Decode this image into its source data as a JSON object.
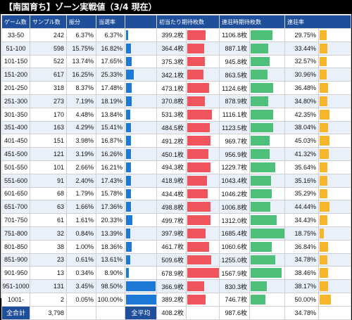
{
  "title": "【南国育ち】ゾーン実戦値（3/4 現在）",
  "headers": [
    "ゲーム数",
    "サンプル数",
    "振分",
    "当選率",
    "",
    "初当たり期待枚数",
    "",
    "連荘時期待枚数",
    "",
    "連荘率",
    ""
  ],
  "colors": {
    "header": "#1f4e9a",
    "blue": "#1e78d6",
    "red": "#f0555e",
    "green": "#4fc07a",
    "orange": "#f7b52c"
  },
  "rows": [
    {
      "zone": "33-50",
      "samples": "242",
      "dist": "6.37%",
      "rate": "6.37%",
      "rate_v": 6.37,
      "first": "399.2枚",
      "first_v": 399.2,
      "ren": "1106.8枚",
      "ren_v": 1106.8,
      "renrate": "29.75%",
      "renrate_v": 29.75
    },
    {
      "zone": "51-100",
      "samples": "598",
      "dist": "15.75%",
      "rate": "16.82%",
      "rate_v": 16.82,
      "first": "364.4枚",
      "first_v": 364.4,
      "ren": "887.1枚",
      "ren_v": 887.1,
      "renrate": "33.44%",
      "renrate_v": 33.44
    },
    {
      "zone": "101-150",
      "samples": "522",
      "dist": "13.74%",
      "rate": "17.65%",
      "rate_v": 17.65,
      "first": "375.3枚",
      "first_v": 375.3,
      "ren": "945.8枚",
      "ren_v": 945.8,
      "renrate": "32.57%",
      "renrate_v": 32.57
    },
    {
      "zone": "151-200",
      "samples": "617",
      "dist": "16.25%",
      "rate": "25.33%",
      "rate_v": 25.33,
      "first": "342.1枚",
      "first_v": 342.1,
      "ren": "863.5枚",
      "ren_v": 863.5,
      "renrate": "30.96%",
      "renrate_v": 30.96
    },
    {
      "zone": "201-250",
      "samples": "318",
      "dist": "8.37%",
      "rate": "17.48%",
      "rate_v": 17.48,
      "first": "473.1枚",
      "first_v": 473.1,
      "ren": "1124.6枚",
      "ren_v": 1124.6,
      "renrate": "36.48%",
      "renrate_v": 36.48
    },
    {
      "zone": "251-300",
      "samples": "273",
      "dist": "7.19%",
      "rate": "18.19%",
      "rate_v": 18.19,
      "first": "370.8枚",
      "first_v": 370.8,
      "ren": "878.9枚",
      "ren_v": 878.9,
      "renrate": "34.80%",
      "renrate_v": 34.8
    },
    {
      "zone": "301-350",
      "samples": "170",
      "dist": "4.48%",
      "rate": "13.84%",
      "rate_v": 13.84,
      "first": "531.3枚",
      "first_v": 531.3,
      "ren": "1116.1枚",
      "ren_v": 1116.1,
      "renrate": "42.35%",
      "renrate_v": 42.35
    },
    {
      "zone": "351-400",
      "samples": "163",
      "dist": "4.29%",
      "rate": "15.41%",
      "rate_v": 15.41,
      "first": "484.5枚",
      "first_v": 484.5,
      "ren": "1123.5枚",
      "ren_v": 1123.5,
      "renrate": "38.04%",
      "renrate_v": 38.04
    },
    {
      "zone": "401-450",
      "samples": "151",
      "dist": "3.98%",
      "rate": "16.87%",
      "rate_v": 16.87,
      "first": "491.2枚",
      "first_v": 491.2,
      "ren": "969.7枚",
      "ren_v": 969.7,
      "renrate": "45.03%",
      "renrate_v": 45.03
    },
    {
      "zone": "451-500",
      "samples": "121",
      "dist": "3.19%",
      "rate": "16.26%",
      "rate_v": 16.26,
      "first": "450.1枚",
      "first_v": 450.1,
      "ren": "956.9枚",
      "ren_v": 956.9,
      "renrate": "41.32%",
      "renrate_v": 41.32
    },
    {
      "zone": "501-550",
      "samples": "101",
      "dist": "2.66%",
      "rate": "16.21%",
      "rate_v": 16.21,
      "first": "494.3枚",
      "first_v": 494.3,
      "ren": "1229.7枚",
      "ren_v": 1229.7,
      "renrate": "35.64%",
      "renrate_v": 35.64
    },
    {
      "zone": "551-600",
      "samples": "91",
      "dist": "2.40%",
      "rate": "17.43%",
      "rate_v": 17.43,
      "first": "418.9枚",
      "first_v": 418.9,
      "ren": "1043.4枚",
      "ren_v": 1043.4,
      "renrate": "35.16%",
      "renrate_v": 35.16
    },
    {
      "zone": "601-650",
      "samples": "68",
      "dist": "1.79%",
      "rate": "15.78%",
      "rate_v": 15.78,
      "first": "434.4枚",
      "first_v": 434.4,
      "ren": "1046.2枚",
      "ren_v": 1046.2,
      "renrate": "35.29%",
      "renrate_v": 35.29
    },
    {
      "zone": "651-700",
      "samples": "63",
      "dist": "1.66%",
      "rate": "17.36%",
      "rate_v": 17.36,
      "first": "498.8枚",
      "first_v": 498.8,
      "ren": "1006.8枚",
      "ren_v": 1006.8,
      "renrate": "44.44%",
      "renrate_v": 44.44
    },
    {
      "zone": "701-750",
      "samples": "61",
      "dist": "1.61%",
      "rate": "20.33%",
      "rate_v": 20.33,
      "first": "499.7枚",
      "first_v": 499.7,
      "ren": "1312.0枚",
      "ren_v": 1312.0,
      "renrate": "34.43%",
      "renrate_v": 34.43
    },
    {
      "zone": "751-800",
      "samples": "32",
      "dist": "0.84%",
      "rate": "13.39%",
      "rate_v": 13.39,
      "first": "397.9枚",
      "first_v": 397.9,
      "ren": "1685.4枚",
      "ren_v": 1685.4,
      "renrate": "18.75%",
      "renrate_v": 18.75
    },
    {
      "zone": "801-850",
      "samples": "38",
      "dist": "1.00%",
      "rate": "18.36%",
      "rate_v": 18.36,
      "first": "461.7枚",
      "first_v": 461.7,
      "ren": "1060.6枚",
      "ren_v": 1060.6,
      "renrate": "36.84%",
      "renrate_v": 36.84
    },
    {
      "zone": "851-900",
      "samples": "23",
      "dist": "0.61%",
      "rate": "13.61%",
      "rate_v": 13.61,
      "first": "509.6枚",
      "first_v": 509.6,
      "ren": "1255.0枚",
      "ren_v": 1255.0,
      "renrate": "34.78%",
      "renrate_v": 34.78
    },
    {
      "zone": "901-950",
      "samples": "13",
      "dist": "0.34%",
      "rate": "8.90%",
      "rate_v": 8.9,
      "first": "678.9枚",
      "first_v": 678.9,
      "ren": "1567.9枚",
      "ren_v": 1567.9,
      "renrate": "38.46%",
      "renrate_v": 38.46
    },
    {
      "zone": "951-1000",
      "samples": "131",
      "dist": "3.45%",
      "rate": "98.50%",
      "rate_v": 98.5,
      "first": "366.9枚",
      "first_v": 366.9,
      "ren": "830.3枚",
      "ren_v": 830.3,
      "renrate": "38.17%",
      "renrate_v": 38.17
    },
    {
      "zone": "1001-",
      "samples": "2",
      "dist": "0.05%",
      "rate": "100.00%",
      "rate_v": 100.0,
      "first": "389.2枚",
      "first_v": 389.2,
      "ren": "746.7枚",
      "ren_v": 746.7,
      "renrate": "50.00%",
      "renrate_v": 50.0
    }
  ],
  "footer": {
    "total_label": "全合計",
    "total_value": "3,798",
    "avg_label": "全平均",
    "avg_first": "408.2枚",
    "avg_ren": "987.6枚",
    "avg_renrate": "34.78%"
  }
}
